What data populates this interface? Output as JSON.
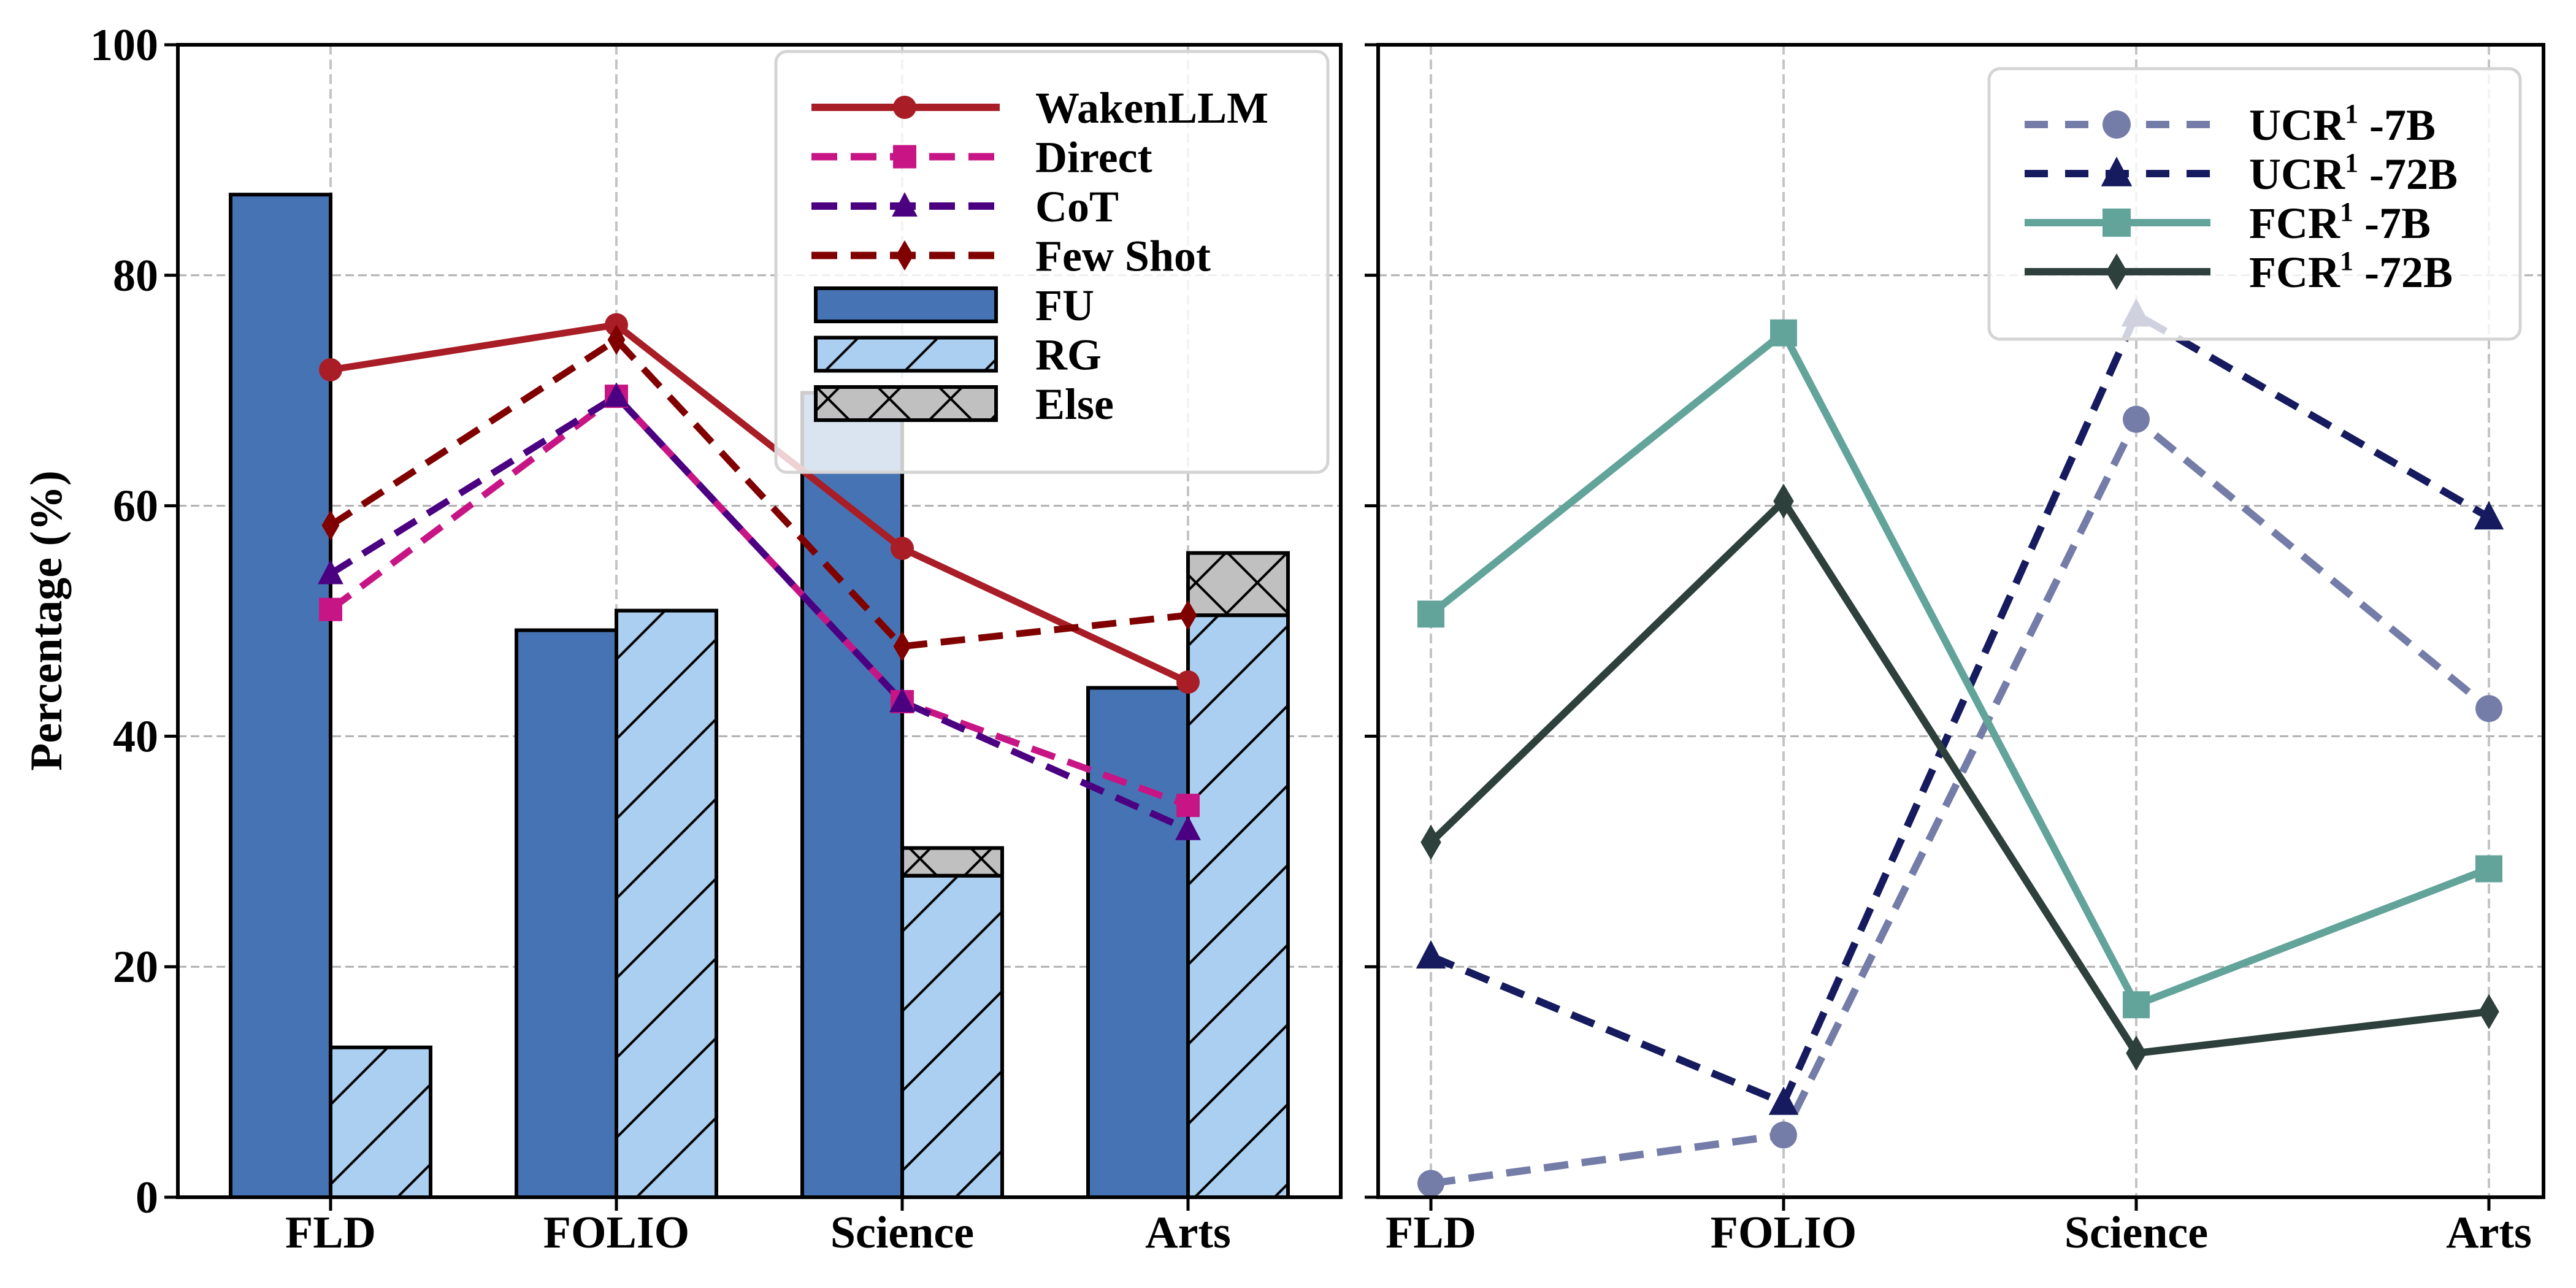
{
  "chart_data": [
    {
      "type": "bar+line",
      "panel": "left",
      "title": "",
      "xlabel": "",
      "ylabel": "Percentage (%)",
      "ylim": [
        0,
        100
      ],
      "yticks": [
        0,
        20,
        40,
        60,
        80,
        100
      ],
      "categories": [
        "FLD",
        "FOLIO",
        "Science",
        "Arts"
      ],
      "grid": true,
      "legend_position": "top-right",
      "bar_series": [
        {
          "name": "FU",
          "color": "#4673b4",
          "hatch": "none",
          "values": [
            87.0,
            49.2,
            69.8,
            44.2
          ]
        },
        {
          "name": "RG",
          "color": "#aacff0",
          "hatch": "diagonal",
          "values": [
            13.0,
            50.9,
            27.9,
            50.5
          ]
        },
        {
          "name": "Else",
          "color": "#c0c0c0",
          "hatch": "cross",
          "stacked_on": "RG",
          "values": [
            0.0,
            0.0,
            2.4,
            5.4
          ]
        }
      ],
      "line_series": [
        {
          "name": "WakenLLM",
          "color": "#a81d26",
          "style": "solid",
          "marker": "circle",
          "values": [
            71.8,
            75.7,
            56.3,
            44.7
          ]
        },
        {
          "name": "Direct",
          "color": "#c71585",
          "style": "dashed",
          "marker": "square",
          "values": [
            51.0,
            69.5,
            43.0,
            34.0
          ]
        },
        {
          "name": "CoT",
          "color": "#4b0082",
          "style": "dashed",
          "marker": "triangle",
          "values": [
            54.1,
            69.5,
            43.0,
            31.9
          ]
        },
        {
          "name": "Few Shot",
          "color": "#800000",
          "style": "dashed",
          "marker": "diamond",
          "values": [
            58.3,
            74.4,
            47.8,
            50.5
          ]
        }
      ],
      "legend": [
        "WakenLLM",
        "Direct",
        "CoT",
        "Few Shot",
        "FU",
        "RG",
        "Else"
      ]
    },
    {
      "type": "line",
      "panel": "right",
      "title": "",
      "xlabel": "",
      "ylabel": "",
      "ylim": [
        0,
        100
      ],
      "categories": [
        "FLD",
        "FOLIO",
        "Science",
        "Arts"
      ],
      "grid": true,
      "shared_y": true,
      "legend_position": "top-right",
      "series": [
        {
          "name": "UCR",
          "sup": "1",
          "suffix": " -7B",
          "color": "#747ca8",
          "style": "dashed",
          "marker": "circle",
          "values": [
            1.2,
            5.4,
            67.5,
            42.4
          ]
        },
        {
          "name": "UCR",
          "sup": "1",
          "suffix": " -72B",
          "color": "#151b5e",
          "style": "dashed",
          "marker": "triangle",
          "values": [
            20.9,
            8.2,
            76.6,
            59.0
          ]
        },
        {
          "name": "FCR",
          "sup": "1",
          "suffix": " -7B",
          "color": "#62a39a",
          "style": "solid",
          "marker": "square",
          "values": [
            50.6,
            75.0,
            16.7,
            28.5
          ]
        },
        {
          "name": "FCR",
          "sup": "1",
          "suffix": " -72B",
          "color": "#2e403b",
          "style": "solid",
          "marker": "diamond",
          "values": [
            30.8,
            60.4,
            12.5,
            16.1
          ]
        }
      ]
    }
  ]
}
